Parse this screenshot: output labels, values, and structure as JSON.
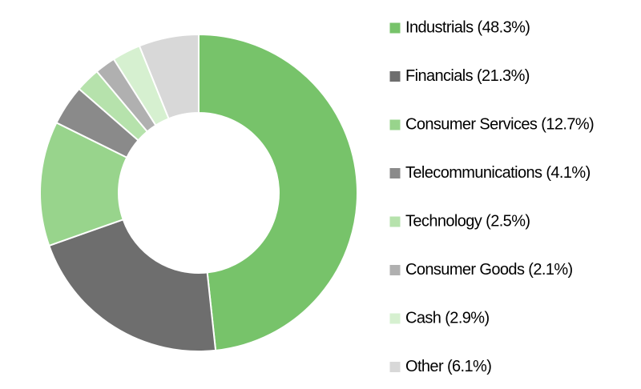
{
  "chart_data": {
    "type": "donut",
    "categories": [
      "Industrials (48.3%)",
      "Financials (21.3%)",
      "Consumer Services (12.7%)",
      "Telecommunications (4.1%)",
      "Technology (2.5%)",
      "Consumer Goods (2.1%)",
      "Cash (2.9%)",
      "Other (6.1%)"
    ],
    "values": [
      48.3,
      21.3,
      12.7,
      4.1,
      2.5,
      2.1,
      2.9,
      6.1
    ],
    "colors": [
      "#77c36a",
      "#6e6e6e",
      "#98d48c",
      "#8a8a8a",
      "#b6e2ac",
      "#b0b0b0",
      "#d6f0d0",
      "#d8d8d8"
    ],
    "legend": "right"
  }
}
